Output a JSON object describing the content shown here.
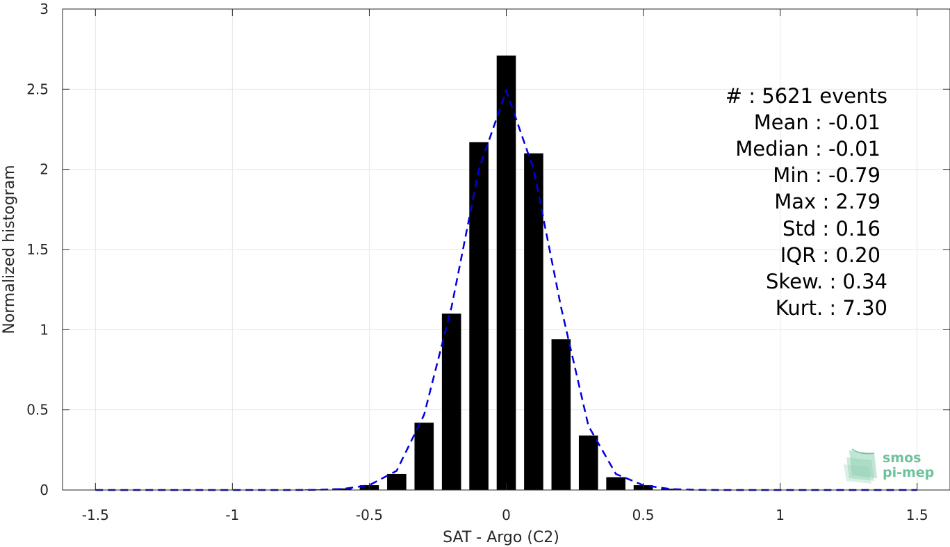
{
  "chart_data": {
    "type": "bar",
    "title": "",
    "xlabel": "SAT - Argo (C2)",
    "ylabel": "Normalized histogram",
    "xlim": [
      -1.62,
      1.62
    ],
    "ylim": [
      0,
      3
    ],
    "grid": true,
    "xticks": [
      -1.5,
      -1,
      -0.5,
      0,
      0.5,
      1,
      1.5
    ],
    "xtick_labels": [
      "-1.5",
      "-1",
      "-0.5",
      "0",
      "0.5",
      "1",
      "1.5"
    ],
    "yticks": [
      0,
      0.5,
      1,
      1.5,
      2,
      2.5,
      3
    ],
    "ytick_labels": [
      "0",
      "0.5",
      "1",
      "1.5",
      "2",
      "2.5",
      "3"
    ],
    "bar_width": 0.07,
    "bars": {
      "x": [
        -0.7,
        -0.6,
        -0.5,
        -0.4,
        -0.3,
        -0.2,
        -0.1,
        0.0,
        0.1,
        0.2,
        0.3,
        0.4,
        0.5,
        0.6,
        0.7
      ],
      "values": [
        0.004,
        0.01,
        0.03,
        0.1,
        0.42,
        1.1,
        2.17,
        2.71,
        2.1,
        0.94,
        0.34,
        0.08,
        0.03,
        0.008,
        0.002
      ]
    },
    "fit_curve": {
      "x": [
        -1.5,
        -1.4,
        -1.3,
        -1.2,
        -1.1,
        -1.0,
        -0.9,
        -0.8,
        -0.7,
        -0.6,
        -0.5,
        -0.4,
        -0.3,
        -0.2,
        -0.1,
        0.0,
        0.1,
        0.2,
        0.3,
        0.4,
        0.5,
        0.6,
        0.7,
        0.8,
        0.9,
        1.0,
        1.1,
        1.2,
        1.3,
        1.4,
        1.5
      ],
      "y": [
        0,
        0,
        0,
        0,
        0,
        0,
        0,
        0,
        0.001,
        0.006,
        0.03,
        0.12,
        0.47,
        1.14,
        2.0,
        2.49,
        2.0,
        1.14,
        0.4,
        0.1,
        0.03,
        0.006,
        0.001,
        0,
        0,
        0,
        0,
        0,
        0,
        0,
        0
      ],
      "color": "#0000dd"
    },
    "bar_color": "#000000"
  },
  "stats": [
    {
      "label": "#  : 5621 events"
    },
    {
      "label": "Mean : -0.01"
    },
    {
      "label": "Median : -0.01"
    },
    {
      "label": "Min : -0.79"
    },
    {
      "label": "Max : 2.79"
    },
    {
      "label": "Std : 0.16"
    },
    {
      "label": "IQR : 0.20"
    },
    {
      "label": "Skew. : 0.34"
    },
    {
      "label": "Kurt. : 7.30"
    }
  ],
  "logo": {
    "line1": "smos",
    "line2": "pi-mep",
    "color": "#6cc29a"
  }
}
